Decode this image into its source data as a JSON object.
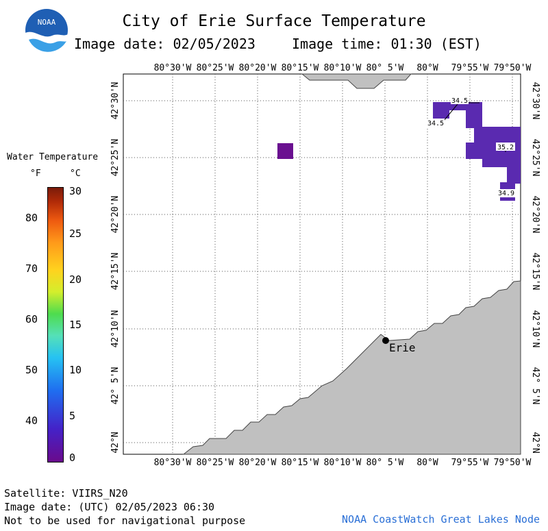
{
  "header": {
    "title": "City of Erie Surface Temperature",
    "image_date": "Image date: 02/05/2023",
    "image_time": "Image time: 01:30 (EST)"
  },
  "logo": {
    "text": "NOAA",
    "icon": "noaa-logo-icon"
  },
  "legend": {
    "title": "Water Temperature",
    "unit_f": "°F",
    "unit_c": "°C",
    "f_ticks": [
      "80",
      "70",
      "60",
      "50",
      "40"
    ],
    "c_ticks": [
      "30",
      "25",
      "20",
      "15",
      "10",
      "5",
      "0"
    ],
    "colors": [
      "#6a0a8c",
      "#4422c8",
      "#1f6ef0",
      "#26c2f2",
      "#55e0b8",
      "#4edc4e",
      "#d4ee2c",
      "#ffd21e",
      "#ff9a1a",
      "#ee5a10",
      "#b02a08",
      "#7a1c0a"
    ]
  },
  "map": {
    "lon_labels": [
      "80°30'W",
      "80°25'W",
      "80°20'W",
      "80°15'W",
      "80°10'W",
      "80° 5'W",
      "80°W",
      "79°55'W",
      "79°50'W"
    ],
    "lat_labels": [
      "42°30'N",
      "42°25'N",
      "42°20'N",
      "42°15'N",
      "42°10'N",
      "42° 5'N",
      "42°N"
    ],
    "city": "Erie",
    "temps": [
      "34.5",
      "34.5",
      "35.2",
      "34.9"
    ],
    "land_color": "#c0c0c0",
    "water_colors": {
      "purple_dark": "#6a1090",
      "purple_mid": "#5a2ab0"
    }
  },
  "footer": {
    "satellite": "Satellite: VIIRS_N20",
    "utc_date": "Image date: (UTC) 02/05/2023  06:30",
    "disclaimer": "Not to be used for navigational purpose",
    "credit": "NOAA CoastWatch Great Lakes Node"
  }
}
